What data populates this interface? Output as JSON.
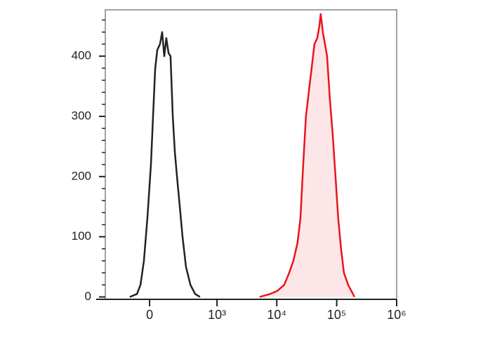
{
  "chart_data": {
    "type": "line",
    "xscale": "biexponential",
    "xlim": [
      -400,
      1000000
    ],
    "xticks": [
      0,
      {
        "value": 1000,
        "label": "10³"
      },
      {
        "value": 10000,
        "label": "10⁴"
      },
      {
        "value": 100000,
        "label": "10⁵"
      },
      {
        "value": 1000000,
        "label": "10⁶"
      }
    ],
    "ylim": [
      -4,
      477
    ],
    "yticks": [
      0,
      100,
      200,
      300,
      400
    ],
    "yminorticks": [
      20,
      40,
      60,
      80,
      120,
      140,
      160,
      180,
      220,
      240,
      260,
      280,
      320,
      340,
      360,
      380,
      420,
      440,
      460
    ],
    "series": [
      {
        "color": "#222222",
        "fill": null,
        "x": [
          -126,
          -76,
          -54,
          -33,
          -13,
          8,
          20,
          33,
          45,
          62,
          76,
          90,
          104,
          120,
          135,
          153,
          171,
          190,
          217,
          246,
          287,
          347,
          421,
          513
        ],
        "values": [
          0,
          5,
          20,
          60,
          130,
          220,
          300,
          380,
          410,
          420,
          440,
          400,
          430,
          405,
          400,
          300,
          240,
          200,
          150,
          100,
          50,
          20,
          5,
          0
        ]
      },
      {
        "color": "#e8141c",
        "fill": "#fde6e8",
        "x": [
          5190,
          7770,
          10200,
          13300,
          16100,
          18900,
          22200,
          24800,
          27600,
          30700,
          34200,
          38200,
          42500,
          47400,
          51300,
          54100,
          58700,
          63700,
          69000,
          76800,
          85600,
          95400,
          106000,
          118000,
          132000,
          155000,
          198000
        ],
        "values": [
          0,
          5,
          10,
          20,
          40,
          60,
          90,
          130,
          220,
          300,
          340,
          380,
          420,
          430,
          450,
          470,
          440,
          420,
          400,
          330,
          270,
          200,
          130,
          80,
          40,
          20,
          0
        ]
      }
    ]
  }
}
